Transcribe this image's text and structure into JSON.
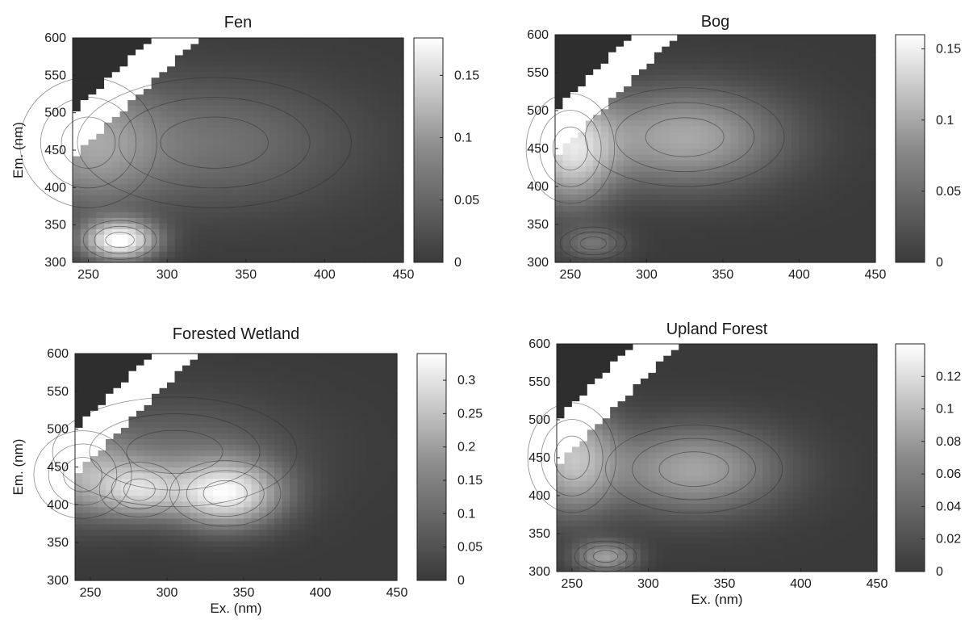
{
  "chart_data": [
    {
      "type": "heatmap",
      "title": "Fen",
      "xlabel": "",
      "ylabel": "Em. (nm)",
      "xlim": [
        240,
        450
      ],
      "ylim": [
        300,
        600
      ],
      "xticks": [
        250,
        300,
        350,
        400,
        450
      ],
      "yticks": [
        300,
        350,
        400,
        450,
        500,
        550,
        600
      ],
      "colorbar": {
        "range": [
          0,
          0.18
        ],
        "ticks": [
          "0",
          "0.05",
          "0.1",
          "0.15"
        ],
        "tick_values": [
          0,
          0.05,
          0.1,
          0.15
        ]
      },
      "peaks": [
        {
          "ex": 270,
          "em": 330,
          "intensity": 0.18,
          "sx": 16,
          "sy": 18
        },
        {
          "ex": 250,
          "em": 460,
          "intensity": 0.08,
          "sx": 30,
          "sy": 60
        },
        {
          "ex": 330,
          "em": 460,
          "intensity": 0.05,
          "sx": 60,
          "sy": 60
        }
      ]
    },
    {
      "type": "heatmap",
      "title": "Bog",
      "xlabel": "",
      "ylabel": "",
      "xlim": [
        240,
        450
      ],
      "ylim": [
        300,
        600
      ],
      "xticks": [
        250,
        300,
        350,
        400,
        450
      ],
      "yticks": [
        300,
        350,
        400,
        450,
        500,
        550,
        600
      ],
      "colorbar": {
        "range": [
          0,
          0.16
        ],
        "ticks": [
          "0",
          "0.05",
          "0.1",
          "0.15"
        ],
        "tick_values": [
          0,
          0.05,
          0.1,
          0.15
        ]
      },
      "peaks": [
        {
          "ex": 250,
          "em": 450,
          "intensity": 0.12,
          "sx": 20,
          "sy": 50
        },
        {
          "ex": 325,
          "em": 465,
          "intensity": 0.09,
          "sx": 45,
          "sy": 45
        },
        {
          "ex": 265,
          "em": 325,
          "intensity": 0.045,
          "sx": 15,
          "sy": 15
        }
      ]
    },
    {
      "type": "heatmap",
      "title": "Forested Wetland",
      "xlabel": "Ex. (nm)",
      "ylabel": "Em. (nm)",
      "xlim": [
        240,
        450
      ],
      "ylim": [
        300,
        600
      ],
      "xticks": [
        250,
        300,
        350,
        400,
        450
      ],
      "yticks": [
        300,
        350,
        400,
        450,
        500,
        550,
        600
      ],
      "colorbar": {
        "range": [
          0,
          0.34
        ],
        "ticks": [
          "0",
          "0.05",
          "0.1",
          "0.15",
          "0.2",
          "0.25",
          "0.3"
        ],
        "tick_values": [
          0,
          0.05,
          0.1,
          0.15,
          0.2,
          0.25,
          0.3
        ]
      },
      "peaks": [
        {
          "ex": 338,
          "em": 415,
          "intensity": 0.3,
          "sx": 25,
          "sy": 30
        },
        {
          "ex": 282,
          "em": 420,
          "intensity": 0.19,
          "sx": 18,
          "sy": 25
        },
        {
          "ex": 245,
          "em": 440,
          "intensity": 0.16,
          "sx": 22,
          "sy": 40
        },
        {
          "ex": 305,
          "em": 470,
          "intensity": 0.08,
          "sx": 55,
          "sy": 50
        }
      ]
    },
    {
      "type": "heatmap",
      "title": "Upland Forest",
      "xlabel": "Ex. (nm)",
      "ylabel": "",
      "xlim": [
        240,
        450
      ],
      "ylim": [
        300,
        600
      ],
      "xticks": [
        250,
        300,
        350,
        400,
        450
      ],
      "yticks": [
        300,
        350,
        400,
        450,
        500,
        550,
        600
      ],
      "colorbar": {
        "range": [
          0,
          0.14
        ],
        "ticks": [
          "0",
          "0.02",
          "0.04",
          "0.06",
          "0.08",
          "0.1",
          "0.12"
        ],
        "tick_values": [
          0,
          0.02,
          0.04,
          0.06,
          0.08,
          0.1,
          0.12
        ]
      },
      "peaks": [
        {
          "ex": 250,
          "em": 450,
          "intensity": 0.09,
          "sx": 20,
          "sy": 50
        },
        {
          "ex": 330,
          "em": 435,
          "intensity": 0.075,
          "sx": 40,
          "sy": 40
        },
        {
          "ex": 272,
          "em": 320,
          "intensity": 0.07,
          "sx": 14,
          "sy": 14
        }
      ]
    }
  ]
}
